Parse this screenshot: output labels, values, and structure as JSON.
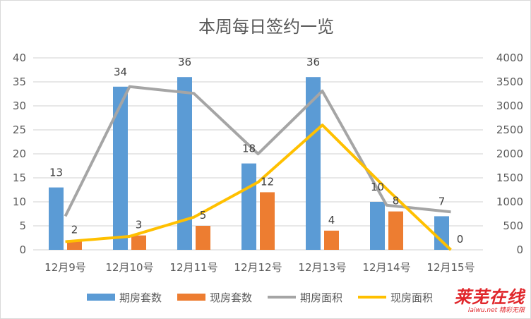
{
  "chart_data": {
    "type": "bar+line",
    "title": "本周每日签约一览",
    "categories": [
      "12月9号",
      "12月10号",
      "12月11号",
      "12月12号",
      "12月13号",
      "12月14号",
      "12月15号"
    ],
    "bar_series": [
      {
        "name": "期房套数",
        "color": "#5b9bd5",
        "values": [
          13,
          34,
          36,
          18,
          36,
          10,
          7
        ]
      },
      {
        "name": "现房套数",
        "color": "#ed7d31",
        "values": [
          2,
          3,
          5,
          12,
          4,
          8,
          0
        ]
      }
    ],
    "line_series": [
      {
        "name": "期房面积",
        "color": "#a5a5a5",
        "axis": "right",
        "values": [
          700,
          3400,
          3260,
          2000,
          3310,
          930,
          790
        ]
      },
      {
        "name": "现房面积",
        "color": "#ffc000",
        "axis": "right",
        "values": [
          170,
          280,
          680,
          1410,
          2600,
          1270,
          0
        ]
      }
    ],
    "left_axis": {
      "min": 0,
      "max": 40,
      "ticks": [
        0,
        5,
        10,
        15,
        20,
        25,
        30,
        35,
        40
      ]
    },
    "right_axis": {
      "min": 0,
      "max": 4000,
      "ticks": [
        0,
        500,
        1000,
        1500,
        2000,
        2500,
        3000,
        3500,
        4000
      ]
    },
    "grid": true,
    "legend_position": "bottom",
    "data_labels": "bars"
  },
  "watermark": {
    "logo_text": "莱芜在线",
    "sub_text": "laiwu.net 精彩无限"
  }
}
